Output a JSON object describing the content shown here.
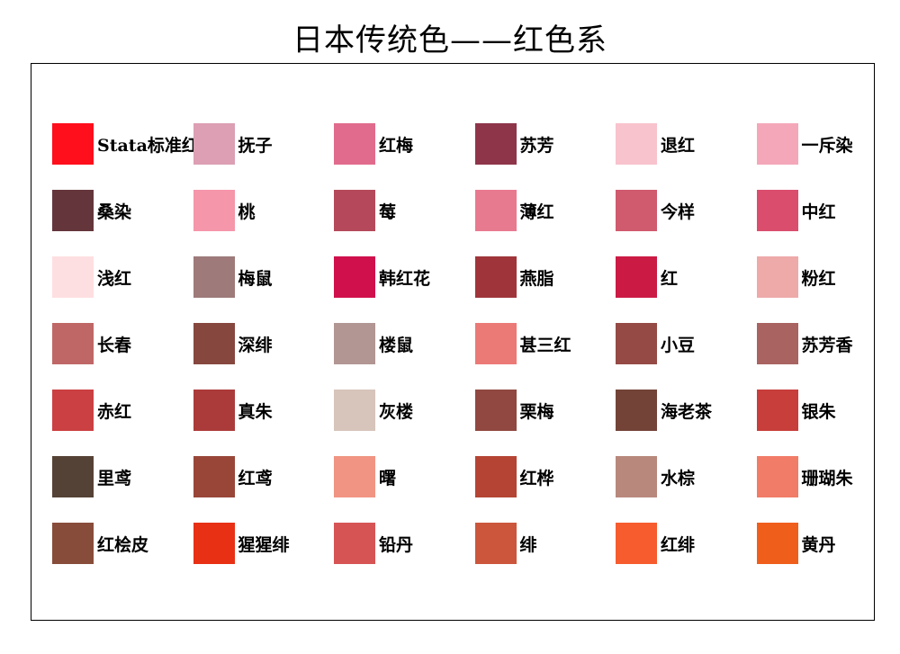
{
  "title": "日本传统色——红色系",
  "chart_data": {
    "type": "table",
    "title": "日本传统色——红色系",
    "columns": 6,
    "rows": 7,
    "swatches": [
      {
        "name": "Stata标准红",
        "color": "#ff0e1c"
      },
      {
        "name": "抚子",
        "color": "#dc9fb4"
      },
      {
        "name": "红梅",
        "color": "#e16b8c"
      },
      {
        "name": "苏芳",
        "color": "#8e354a"
      },
      {
        "name": "退红",
        "color": "#f8c3cd"
      },
      {
        "name": "一斥染",
        "color": "#f4a7b9"
      },
      {
        "name": "桑染",
        "color": "#64363c"
      },
      {
        "name": "桃",
        "color": "#f596aa"
      },
      {
        "name": "莓",
        "color": "#b5495b"
      },
      {
        "name": "薄红",
        "color": "#e87a90"
      },
      {
        "name": "今样",
        "color": "#d05a6e"
      },
      {
        "name": "中红",
        "color": "#db4d6d"
      },
      {
        "name": "浅红",
        "color": "#fedfe1"
      },
      {
        "name": "梅鼠",
        "color": "#9e7a7a"
      },
      {
        "name": "韩红花",
        "color": "#d0104c"
      },
      {
        "name": "燕脂",
        "color": "#9f353a"
      },
      {
        "name": "红",
        "color": "#cb1b45"
      },
      {
        "name": "粉红",
        "color": "#eea9a9"
      },
      {
        "name": "长春",
        "color": "#bf6766"
      },
      {
        "name": "深绯",
        "color": "#86473f"
      },
      {
        "name": "楼鼠",
        "color": "#b19693"
      },
      {
        "name": "甚三红",
        "color": "#eb7a77"
      },
      {
        "name": "小豆",
        "color": "#954a45"
      },
      {
        "name": "苏芳香",
        "color": "#a96360"
      },
      {
        "name": "赤红",
        "color": "#cb4042"
      },
      {
        "name": "真朱",
        "color": "#ab3b3a"
      },
      {
        "name": "灰楼",
        "color": "#d7c4bb"
      },
      {
        "name": "栗梅",
        "color": "#904840"
      },
      {
        "name": "海老茶",
        "color": "#734338"
      },
      {
        "name": "银朱",
        "color": "#c73e3a"
      },
      {
        "name": "里鸢",
        "color": "#554236"
      },
      {
        "name": "红鸢",
        "color": "#994639"
      },
      {
        "name": "曙",
        "color": "#f19483"
      },
      {
        "name": "红桦",
        "color": "#b54434"
      },
      {
        "name": "水棕",
        "color": "#b9887d"
      },
      {
        "name": "珊瑚朱",
        "color": "#f17c67"
      },
      {
        "name": "红桧皮",
        "color": "#884c3a"
      },
      {
        "name": "猩猩绯",
        "color": "#e83015"
      },
      {
        "name": "铅丹",
        "color": "#d75455"
      },
      {
        "name": "绯",
        "color": "#cb563c"
      },
      {
        "name": "红绯",
        "color": "#f75c2f"
      },
      {
        "name": "黄丹",
        "color": "#f05e1c"
      }
    ]
  }
}
